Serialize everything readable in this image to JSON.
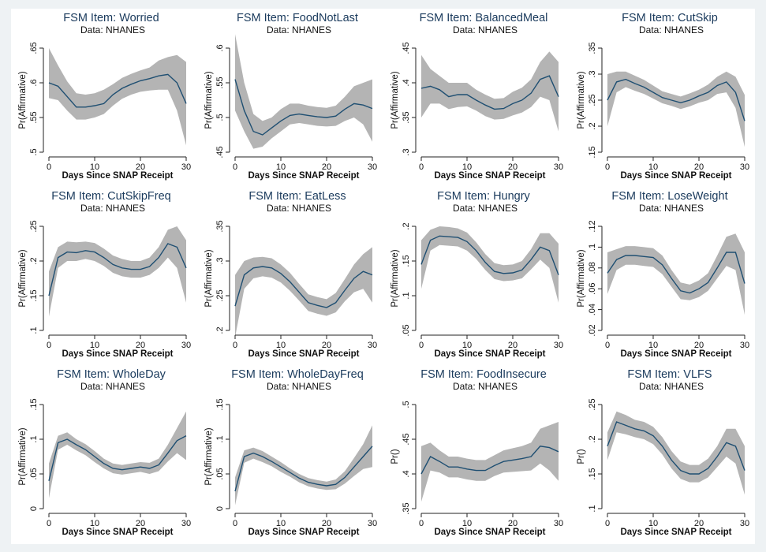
{
  "chart_data": [
    {
      "type": "line",
      "title": "FSM Item: Worried",
      "subtitle": "Data: NHANES",
      "xlabel": "Days Since SNAP Receipt",
      "ylabel": "Pr(Affirmative)",
      "xlim": [
        0,
        30
      ],
      "ylim": [
        0.5,
        0.65
      ],
      "xticks": [
        0,
        10,
        20,
        30
      ],
      "xtick_labels": [
        "0",
        "10",
        "20",
        "30"
      ],
      "yticks": [
        0.5,
        0.55,
        0.6,
        0.65
      ],
      "ytick_labels": [
        ".5",
        ".55",
        ".6",
        ".65"
      ],
      "grid": false,
      "x": [
        0,
        2,
        4,
        6,
        8,
        10,
        12,
        14,
        16,
        18,
        20,
        22,
        24,
        26,
        28,
        30
      ],
      "y": [
        0.6,
        0.595,
        0.58,
        0.565,
        0.565,
        0.567,
        0.57,
        0.583,
        0.592,
        0.598,
        0.603,
        0.606,
        0.61,
        0.612,
        0.6,
        0.57
      ],
      "lower": [
        0.578,
        0.575,
        0.56,
        0.547,
        0.547,
        0.55,
        0.555,
        0.567,
        0.577,
        0.583,
        0.587,
        0.589,
        0.59,
        0.59,
        0.56,
        0.51
      ],
      "upper": [
        0.65,
        0.625,
        0.602,
        0.585,
        0.583,
        0.585,
        0.59,
        0.598,
        0.607,
        0.613,
        0.618,
        0.622,
        0.632,
        0.637,
        0.64,
        0.63
      ]
    },
    {
      "type": "line",
      "title": "FSM Item: FoodNotLast",
      "subtitle": "Data: NHANES",
      "xlabel": "Days Since SNAP Receipt",
      "ylabel": "Pr(Affirmative)",
      "xlim": [
        0,
        30
      ],
      "ylim": [
        0.45,
        0.6
      ],
      "xticks": [
        0,
        10,
        20,
        30
      ],
      "xtick_labels": [
        "0",
        "10",
        "20",
        "30"
      ],
      "yticks": [
        0.45,
        0.5,
        0.55,
        0.6
      ],
      "ytick_labels": [
        ".45",
        ".5",
        ".55",
        ".6"
      ],
      "grid": false,
      "x": [
        0,
        2,
        4,
        6,
        8,
        10,
        12,
        14,
        16,
        18,
        20,
        22,
        24,
        26,
        28,
        30
      ],
      "y": [
        0.555,
        0.51,
        0.48,
        0.475,
        0.485,
        0.495,
        0.503,
        0.505,
        0.503,
        0.501,
        0.5,
        0.502,
        0.512,
        0.52,
        0.518,
        0.513
      ],
      "lower": [
        0.51,
        0.48,
        0.455,
        0.458,
        0.47,
        0.48,
        0.49,
        0.492,
        0.49,
        0.488,
        0.487,
        0.488,
        0.495,
        0.5,
        0.49,
        0.465
      ],
      "upper": [
        0.62,
        0.55,
        0.505,
        0.495,
        0.5,
        0.512,
        0.52,
        0.52,
        0.517,
        0.515,
        0.514,
        0.517,
        0.53,
        0.545,
        0.55,
        0.555
      ]
    },
    {
      "type": "line",
      "title": "FSM Item: BalancedMeal",
      "subtitle": "Data: NHANES",
      "xlabel": "Days Since SNAP Receipt",
      "ylabel": "Pr(Affirmative)",
      "xlim": [
        0,
        30
      ],
      "ylim": [
        0.3,
        0.45
      ],
      "xticks": [
        0,
        10,
        20,
        30
      ],
      "xtick_labels": [
        "0",
        "10",
        "20",
        "30"
      ],
      "yticks": [
        0.3,
        0.35,
        0.4,
        0.45
      ],
      "ytick_labels": [
        ".3",
        ".35",
        ".4",
        ".45"
      ],
      "grid": false,
      "x": [
        0,
        2,
        4,
        6,
        8,
        10,
        12,
        14,
        16,
        18,
        20,
        22,
        24,
        26,
        28,
        30
      ],
      "y": [
        0.392,
        0.395,
        0.39,
        0.38,
        0.383,
        0.383,
        0.375,
        0.368,
        0.362,
        0.363,
        0.37,
        0.375,
        0.385,
        0.405,
        0.41,
        0.38
      ],
      "lower": [
        0.35,
        0.37,
        0.37,
        0.362,
        0.365,
        0.366,
        0.36,
        0.352,
        0.347,
        0.348,
        0.353,
        0.357,
        0.365,
        0.38,
        0.375,
        0.33
      ],
      "upper": [
        0.44,
        0.42,
        0.41,
        0.4,
        0.4,
        0.4,
        0.39,
        0.383,
        0.377,
        0.378,
        0.387,
        0.393,
        0.405,
        0.43,
        0.445,
        0.43
      ]
    },
    {
      "type": "line",
      "title": "FSM Item: CutSkip",
      "subtitle": "Data: NHANES",
      "xlabel": "Days Since SNAP Receipt",
      "ylabel": "Pr(Affirmative)",
      "xlim": [
        0,
        30
      ],
      "ylim": [
        0.15,
        0.35
      ],
      "xticks": [
        0,
        10,
        20,
        30
      ],
      "xtick_labels": [
        "0",
        "10",
        "20",
        "30"
      ],
      "yticks": [
        0.15,
        0.2,
        0.25,
        0.3,
        0.35
      ],
      "ytick_labels": [
        ".15",
        ".2",
        ".25",
        ".3",
        ".35"
      ],
      "grid": false,
      "x": [
        0,
        2,
        4,
        6,
        8,
        10,
        12,
        14,
        16,
        18,
        20,
        22,
        24,
        26,
        28,
        30
      ],
      "y": [
        0.25,
        0.285,
        0.29,
        0.282,
        0.275,
        0.265,
        0.255,
        0.25,
        0.245,
        0.25,
        0.258,
        0.265,
        0.278,
        0.285,
        0.265,
        0.21
      ],
      "lower": [
        0.2,
        0.265,
        0.275,
        0.268,
        0.262,
        0.253,
        0.244,
        0.239,
        0.233,
        0.238,
        0.245,
        0.25,
        0.262,
        0.265,
        0.235,
        0.16
      ],
      "upper": [
        0.3,
        0.305,
        0.305,
        0.297,
        0.289,
        0.278,
        0.267,
        0.262,
        0.257,
        0.263,
        0.27,
        0.28,
        0.295,
        0.305,
        0.295,
        0.26
      ]
    },
    {
      "type": "line",
      "title": "FSM Item: CutSkipFreq",
      "subtitle": "Data: NHANES",
      "xlabel": "Days Since SNAP Receipt",
      "ylabel": "Pr(Affirmative)",
      "xlim": [
        0,
        30
      ],
      "ylim": [
        0.1,
        0.25
      ],
      "xticks": [
        0,
        10,
        20,
        30
      ],
      "xtick_labels": [
        "0",
        "10",
        "20",
        "30"
      ],
      "yticks": [
        0.1,
        0.15,
        0.2,
        0.25
      ],
      "ytick_labels": [
        ".1",
        ".15",
        ".2",
        ".25"
      ],
      "grid": false,
      "x": [
        0,
        2,
        4,
        6,
        8,
        10,
        12,
        14,
        16,
        18,
        20,
        22,
        24,
        26,
        28,
        30
      ],
      "y": [
        0.15,
        0.205,
        0.213,
        0.212,
        0.215,
        0.213,
        0.205,
        0.195,
        0.19,
        0.188,
        0.188,
        0.192,
        0.205,
        0.225,
        0.22,
        0.19
      ],
      "lower": [
        0.12,
        0.19,
        0.2,
        0.2,
        0.203,
        0.2,
        0.193,
        0.183,
        0.178,
        0.176,
        0.176,
        0.18,
        0.19,
        0.205,
        0.19,
        0.14
      ],
      "upper": [
        0.185,
        0.22,
        0.228,
        0.227,
        0.228,
        0.226,
        0.218,
        0.208,
        0.203,
        0.2,
        0.2,
        0.205,
        0.22,
        0.245,
        0.25,
        0.23
      ]
    },
    {
      "type": "line",
      "title": "FSM Item: EatLess",
      "subtitle": "Data: NHANES",
      "xlabel": "Days Since SNAP Receipt",
      "ylabel": "Pr(Affirmative)",
      "xlim": [
        0,
        30
      ],
      "ylim": [
        0.2,
        0.35
      ],
      "xticks": [
        0,
        10,
        20,
        30
      ],
      "xtick_labels": [
        "0",
        "10",
        "20",
        "30"
      ],
      "yticks": [
        0.2,
        0.25,
        0.3,
        0.35
      ],
      "ytick_labels": [
        ".2",
        ".25",
        ".3",
        ".35"
      ],
      "grid": false,
      "x": [
        0,
        2,
        4,
        6,
        8,
        10,
        12,
        14,
        16,
        18,
        20,
        22,
        24,
        26,
        28,
        30
      ],
      "y": [
        0.235,
        0.28,
        0.29,
        0.292,
        0.29,
        0.282,
        0.27,
        0.255,
        0.24,
        0.236,
        0.233,
        0.24,
        0.258,
        0.275,
        0.285,
        0.28
      ],
      "lower": [
        0.19,
        0.26,
        0.275,
        0.278,
        0.276,
        0.269,
        0.257,
        0.243,
        0.228,
        0.224,
        0.221,
        0.226,
        0.242,
        0.255,
        0.26,
        0.24
      ],
      "upper": [
        0.28,
        0.3,
        0.305,
        0.306,
        0.304,
        0.295,
        0.283,
        0.267,
        0.252,
        0.248,
        0.245,
        0.254,
        0.274,
        0.295,
        0.31,
        0.32
      ]
    },
    {
      "type": "line",
      "title": "FSM Item: Hungry",
      "subtitle": "Data: NHANES",
      "xlabel": "Days Since SNAP Receipt",
      "ylabel": "Pr(Affirmative)",
      "xlim": [
        0,
        30
      ],
      "ylim": [
        0.05,
        0.2
      ],
      "xticks": [
        0,
        10,
        20,
        30
      ],
      "xtick_labels": [
        "0",
        "10",
        "20",
        "30"
      ],
      "yticks": [
        0.05,
        0.1,
        0.15,
        0.2
      ],
      "ytick_labels": [
        ".05",
        ".1",
        ".15",
        ".2"
      ],
      "grid": false,
      "x": [
        0,
        2,
        4,
        6,
        8,
        10,
        12,
        14,
        16,
        18,
        20,
        22,
        24,
        26,
        28,
        30
      ],
      "y": [
        0.145,
        0.18,
        0.186,
        0.185,
        0.184,
        0.178,
        0.165,
        0.148,
        0.135,
        0.132,
        0.133,
        0.137,
        0.152,
        0.17,
        0.165,
        0.13
      ],
      "lower": [
        0.11,
        0.165,
        0.173,
        0.172,
        0.171,
        0.165,
        0.153,
        0.137,
        0.124,
        0.121,
        0.122,
        0.125,
        0.138,
        0.152,
        0.14,
        0.09
      ],
      "upper": [
        0.18,
        0.195,
        0.2,
        0.199,
        0.197,
        0.191,
        0.177,
        0.16,
        0.147,
        0.144,
        0.145,
        0.15,
        0.167,
        0.19,
        0.19,
        0.175
      ]
    },
    {
      "type": "line",
      "title": "FSM Item: LoseWeight",
      "subtitle": "Data: NHANES",
      "xlabel": "Days Since SNAP Receipt",
      "ylabel": "Pr(Affirmative)",
      "xlim": [
        0,
        30
      ],
      "ylim": [
        0.02,
        0.12
      ],
      "xticks": [
        0,
        10,
        20,
        30
      ],
      "xtick_labels": [
        "0",
        "10",
        "20",
        "30"
      ],
      "yticks": [
        0.02,
        0.04,
        0.06,
        0.08,
        0.1,
        0.12
      ],
      "ytick_labels": [
        ".02",
        ".04",
        ".06",
        ".08",
        ".1",
        ".12"
      ],
      "grid": false,
      "x": [
        0,
        2,
        4,
        6,
        8,
        10,
        12,
        14,
        16,
        18,
        20,
        22,
        24,
        26,
        28,
        30
      ],
      "y": [
        0.075,
        0.088,
        0.092,
        0.092,
        0.091,
        0.09,
        0.083,
        0.07,
        0.058,
        0.056,
        0.06,
        0.066,
        0.08,
        0.095,
        0.095,
        0.065
      ],
      "lower": [
        0.055,
        0.078,
        0.083,
        0.083,
        0.082,
        0.081,
        0.074,
        0.062,
        0.05,
        0.049,
        0.052,
        0.058,
        0.07,
        0.082,
        0.078,
        0.035
      ],
      "upper": [
        0.095,
        0.098,
        0.101,
        0.101,
        0.1,
        0.099,
        0.092,
        0.078,
        0.066,
        0.064,
        0.068,
        0.075,
        0.092,
        0.11,
        0.113,
        0.095
      ]
    },
    {
      "type": "line",
      "title": "FSM Item: WholeDay",
      "subtitle": "Data: NHANES",
      "xlabel": "Days Since SNAP Receipt",
      "ylabel": "Pr(Affirmative)",
      "xlim": [
        0,
        30
      ],
      "ylim": [
        0,
        0.15
      ],
      "xticks": [
        0,
        10,
        20,
        30
      ],
      "xtick_labels": [
        "0",
        "10",
        "20",
        "30"
      ],
      "yticks": [
        0,
        0.05,
        0.1,
        0.15
      ],
      "ytick_labels": [
        "0",
        ".05",
        ".1",
        ".15"
      ],
      "grid": false,
      "x": [
        0,
        2,
        4,
        6,
        8,
        10,
        12,
        14,
        16,
        18,
        20,
        22,
        24,
        26,
        28,
        30
      ],
      "y": [
        0.04,
        0.095,
        0.1,
        0.092,
        0.085,
        0.075,
        0.065,
        0.058,
        0.056,
        0.058,
        0.06,
        0.058,
        0.063,
        0.08,
        0.098,
        0.105
      ],
      "lower": [
        0.015,
        0.085,
        0.092,
        0.084,
        0.077,
        0.067,
        0.058,
        0.051,
        0.049,
        0.051,
        0.053,
        0.05,
        0.054,
        0.068,
        0.08,
        0.07
      ],
      "upper": [
        0.065,
        0.105,
        0.11,
        0.1,
        0.093,
        0.083,
        0.072,
        0.065,
        0.063,
        0.065,
        0.067,
        0.066,
        0.072,
        0.092,
        0.116,
        0.14
      ]
    },
    {
      "type": "line",
      "title": "FSM Item: WholeDayFreq",
      "subtitle": "Data: NHANES",
      "xlabel": "Days Since SNAP Receipt",
      "ylabel": "Pr(Affirmative)",
      "xlim": [
        0,
        30
      ],
      "ylim": [
        0,
        0.15
      ],
      "xticks": [
        0,
        10,
        20,
        30
      ],
      "xtick_labels": [
        "0",
        "10",
        "20",
        "30"
      ],
      "yticks": [
        0,
        0.05,
        0.1,
        0.15
      ],
      "ytick_labels": [
        "0",
        ".05",
        ".1",
        ".15"
      ],
      "grid": false,
      "x": [
        0,
        2,
        4,
        6,
        8,
        10,
        12,
        14,
        16,
        18,
        20,
        22,
        24,
        26,
        28,
        30
      ],
      "y": [
        0.025,
        0.075,
        0.08,
        0.075,
        0.068,
        0.06,
        0.052,
        0.044,
        0.038,
        0.035,
        0.033,
        0.035,
        0.045,
        0.06,
        0.075,
        0.09
      ],
      "lower": [
        0.005,
        0.066,
        0.072,
        0.067,
        0.061,
        0.053,
        0.046,
        0.038,
        0.032,
        0.029,
        0.027,
        0.028,
        0.036,
        0.047,
        0.057,
        0.06
      ],
      "upper": [
        0.045,
        0.084,
        0.088,
        0.083,
        0.075,
        0.067,
        0.058,
        0.05,
        0.044,
        0.041,
        0.039,
        0.042,
        0.054,
        0.073,
        0.093,
        0.12
      ]
    },
    {
      "type": "line",
      "title": "FSM Item: FoodInsecure",
      "subtitle": "Data: NHANES",
      "xlabel": "Days Since SNAP Receipt",
      "ylabel": "Pr()",
      "xlim": [
        0,
        30
      ],
      "ylim": [
        0.35,
        0.5
      ],
      "xticks": [
        0,
        10,
        20,
        30
      ],
      "xtick_labels": [
        "0",
        "10",
        "20",
        "30"
      ],
      "yticks": [
        0.35,
        0.4,
        0.45,
        0.5
      ],
      "ytick_labels": [
        ".35",
        ".4",
        ".45",
        ".5"
      ],
      "grid": false,
      "x": [
        0,
        2,
        4,
        6,
        8,
        10,
        12,
        14,
        16,
        18,
        20,
        22,
        24,
        26,
        28,
        30
      ],
      "y": [
        0.4,
        0.425,
        0.418,
        0.41,
        0.41,
        0.407,
        0.405,
        0.405,
        0.412,
        0.418,
        0.42,
        0.422,
        0.425,
        0.44,
        0.438,
        0.432
      ],
      "lower": [
        0.36,
        0.405,
        0.402,
        0.395,
        0.395,
        0.392,
        0.39,
        0.39,
        0.397,
        0.402,
        0.403,
        0.404,
        0.405,
        0.415,
        0.405,
        0.39
      ],
      "upper": [
        0.44,
        0.445,
        0.434,
        0.425,
        0.425,
        0.422,
        0.42,
        0.42,
        0.427,
        0.434,
        0.437,
        0.44,
        0.445,
        0.465,
        0.47,
        0.475
      ]
    },
    {
      "type": "line",
      "title": "FSM Item: VLFS",
      "subtitle": "Data: NHANES",
      "xlabel": "Days Since SNAP Receipt",
      "ylabel": "Pr()",
      "xlim": [
        0,
        30
      ],
      "ylim": [
        0.1,
        0.25
      ],
      "xticks": [
        0,
        10,
        20,
        30
      ],
      "xtick_labels": [
        "0",
        "10",
        "20",
        "30"
      ],
      "yticks": [
        0.1,
        0.15,
        0.2,
        0.25
      ],
      "ytick_labels": [
        ".1",
        ".15",
        ".2",
        ".25"
      ],
      "grid": false,
      "x": [
        0,
        2,
        4,
        6,
        8,
        10,
        12,
        14,
        16,
        18,
        20,
        22,
        24,
        26,
        28,
        30
      ],
      "y": [
        0.19,
        0.225,
        0.22,
        0.215,
        0.212,
        0.205,
        0.19,
        0.17,
        0.155,
        0.15,
        0.15,
        0.158,
        0.175,
        0.195,
        0.19,
        0.155
      ],
      "lower": [
        0.17,
        0.21,
        0.207,
        0.203,
        0.2,
        0.193,
        0.178,
        0.158,
        0.143,
        0.138,
        0.138,
        0.145,
        0.16,
        0.175,
        0.165,
        0.12
      ],
      "upper": [
        0.21,
        0.24,
        0.235,
        0.228,
        0.225,
        0.218,
        0.203,
        0.183,
        0.168,
        0.163,
        0.163,
        0.172,
        0.19,
        0.215,
        0.215,
        0.19
      ]
    }
  ],
  "colors": {
    "band": "#b4b4b4",
    "line": "#1f4f72",
    "axis": "#222222",
    "text": "#1a3a5c",
    "page_background": "#eef2f4",
    "plot_background": "#ffffff"
  }
}
